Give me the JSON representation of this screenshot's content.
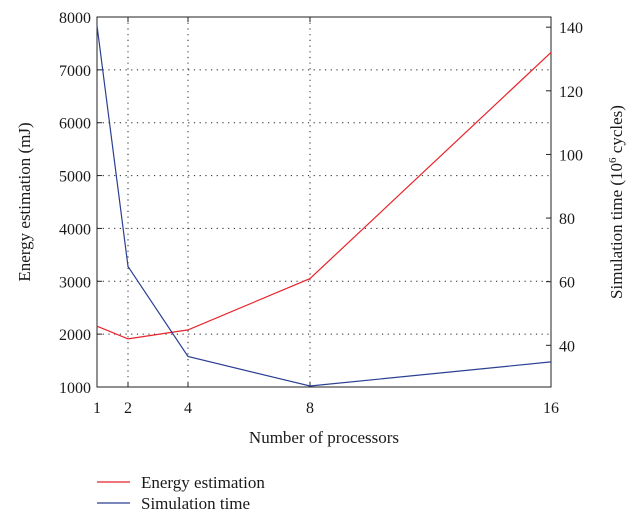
{
  "chart_data": {
    "type": "line",
    "xlabel": "Number of processors",
    "ylabel_left": "Energy estimation (mJ)",
    "ylabel_right_parts": {
      "prefix": "Simulation time (10",
      "sup": "6",
      "suffix": " cycles)"
    },
    "x_ticks": [
      1,
      2,
      4,
      8,
      16
    ],
    "x_range": [
      1,
      16
    ],
    "y_left_range": [
      1000,
      8000
    ],
    "y_left_ticks": [
      1000,
      2000,
      3000,
      4000,
      5000,
      6000,
      7000,
      8000
    ],
    "y_right_range": [
      26.9,
      143.2
    ],
    "y_right_ticks": [
      40,
      60,
      80,
      100,
      120,
      140
    ],
    "grid": true,
    "legend_position": "bottom-left, below plot",
    "series": [
      {
        "name": "Energy estimation",
        "axis": "left",
        "color": "#e8232a",
        "x": [
          1,
          2,
          4,
          8,
          16
        ],
        "y": [
          2150,
          1910,
          2080,
          3050,
          7330
        ]
      },
      {
        "name": "Simulation time",
        "axis": "right",
        "color": "#2b3f93",
        "x": [
          1,
          2,
          4,
          8,
          16
        ],
        "y": [
          140.5,
          64.8,
          36.5,
          27.2,
          34.8
        ]
      }
    ]
  }
}
